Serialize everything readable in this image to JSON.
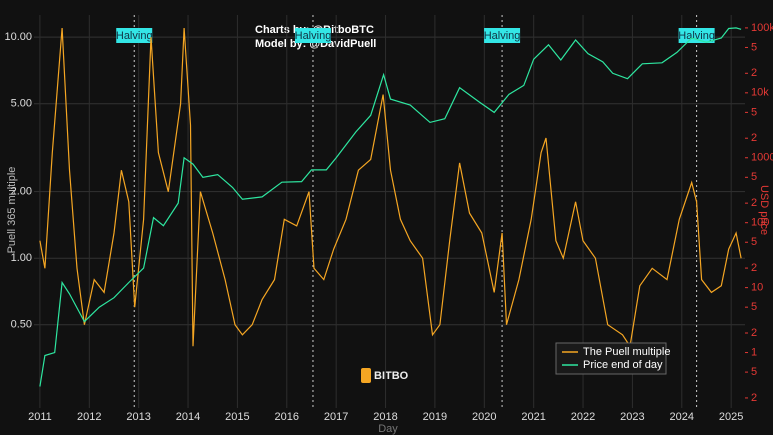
{
  "chart_data": {
    "type": "line",
    "y_label": "Puell 365 multiple",
    "y2_label": "USD price",
    "x_label": "Day",
    "credits": [
      "Charts by: @BitboBTC",
      "Model by: @DavidPuell"
    ],
    "watermark": "BITBO",
    "ylog": true,
    "y2log": true,
    "grid": true,
    "legend": "lower right",
    "xlim": [
      2010.88,
      2025.28
    ],
    "xticks": [
      2011,
      2012,
      2013,
      2014,
      2015,
      2016,
      2017,
      2018,
      2019,
      2020,
      2021,
      2022,
      2023,
      2024,
      2025
    ],
    "ylim": [
      0.21,
      12.6
    ],
    "yticks": [
      {
        "value": 0.5,
        "label": "0.50"
      },
      {
        "value": 1,
        "label": "1.00"
      },
      {
        "value": 2,
        "label": "2.00"
      },
      {
        "value": 5,
        "label": "5.00"
      },
      {
        "value": 10,
        "label": "10.00"
      }
    ],
    "y2lim": [
      0.14,
      158000
    ],
    "y2ticks": [
      {
        "value": 0.2,
        "label": "2"
      },
      {
        "value": 0.5,
        "label": "5"
      },
      1,
      {
        "value": 2,
        "label": "2"
      },
      {
        "value": 5,
        "label": "5"
      },
      10,
      {
        "value": 20,
        "label": "2"
      },
      {
        "value": 50,
        "label": "5"
      },
      100,
      {
        "value": 200,
        "label": "2"
      },
      {
        "value": 500,
        "label": "5"
      },
      1000,
      {
        "value": 2000,
        "label": "2"
      },
      {
        "value": 5000,
        "label": "5"
      },
      {
        "value": 10000,
        "label": "10k"
      },
      {
        "value": 20000,
        "label": "2"
      },
      {
        "value": 50000,
        "label": "5"
      },
      {
        "value": 100000,
        "label": "100k"
      }
    ],
    "annotations": [
      {
        "x": 2012.91,
        "label": "Halving"
      },
      {
        "x": 2016.53,
        "label": "Halving"
      },
      {
        "x": 2020.36,
        "label": "Halving"
      },
      {
        "x": 2024.3,
        "label": "Halving"
      }
    ],
    "series": [
      {
        "name": "The Puell multiple",
        "color": "#f5a623",
        "axis": "y",
        "x": [
          2011.0,
          2011.1,
          2011.25,
          2011.45,
          2011.6,
          2011.75,
          2011.9,
          2012.1,
          2012.3,
          2012.5,
          2012.65,
          2012.8,
          2012.92,
          2013.1,
          2013.25,
          2013.4,
          2013.6,
          2013.85,
          2013.92,
          2014.05,
          2014.1,
          2014.25,
          2014.5,
          2014.75,
          2014.95,
          2015.1,
          2015.3,
          2015.5,
          2015.75,
          2015.95,
          2016.2,
          2016.45,
          2016.55,
          2016.75,
          2016.95,
          2017.2,
          2017.45,
          2017.7,
          2017.95,
          2018.1,
          2018.3,
          2018.5,
          2018.75,
          2018.95,
          2019.1,
          2019.3,
          2019.5,
          2019.7,
          2019.95,
          2020.2,
          2020.36,
          2020.45,
          2020.7,
          2020.95,
          2021.15,
          2021.25,
          2021.45,
          2021.6,
          2021.85,
          2022.0,
          2022.25,
          2022.5,
          2022.8,
          2022.95,
          2023.15,
          2023.4,
          2023.7,
          2023.95,
          2024.2,
          2024.3,
          2024.4,
          2024.6,
          2024.8,
          2024.95,
          2025.1,
          2025.2
        ],
        "values": [
          1.2,
          0.9,
          3,
          11,
          2.5,
          0.9,
          0.5,
          0.8,
          0.7,
          1.3,
          2.5,
          1.8,
          0.6,
          1.5,
          10,
          3,
          2,
          5,
          11,
          4,
          0.4,
          2,
          1.3,
          0.8,
          0.5,
          0.45,
          0.5,
          0.65,
          0.8,
          1.5,
          1.4,
          2.0,
          0.9,
          0.8,
          1.1,
          1.5,
          2.5,
          2.8,
          5.5,
          2.5,
          1.5,
          1.2,
          1.0,
          0.45,
          0.5,
          1.2,
          2.7,
          1.6,
          1.3,
          0.7,
          1.3,
          0.5,
          0.8,
          1.5,
          3.0,
          3.5,
          1.2,
          1.0,
          1.8,
          1.2,
          1.0,
          0.5,
          0.45,
          0.4,
          0.75,
          0.9,
          0.8,
          1.5,
          2.2,
          1.8,
          0.8,
          0.7,
          0.75,
          1.1,
          1.3,
          1.0
        ]
      },
      {
        "name": "Price end of day",
        "color": "#2ee6a0",
        "axis": "y2",
        "x": [
          2011.0,
          2011.1,
          2011.3,
          2011.45,
          2011.6,
          2011.9,
          2012.2,
          2012.5,
          2012.8,
          2013.1,
          2013.3,
          2013.5,
          2013.8,
          2013.92,
          2014.1,
          2014.3,
          2014.6,
          2014.9,
          2015.1,
          2015.5,
          2015.9,
          2016.3,
          2016.5,
          2016.8,
          2017.0,
          2017.4,
          2017.7,
          2017.96,
          2018.1,
          2018.5,
          2018.9,
          2019.2,
          2019.5,
          2019.9,
          2020.2,
          2020.5,
          2020.8,
          2021.0,
          2021.3,
          2021.55,
          2021.85,
          2022.1,
          2022.4,
          2022.6,
          2022.9,
          2023.2,
          2023.6,
          2023.9,
          2024.2,
          2024.5,
          2024.8,
          2024.95,
          2025.1,
          2025.2
        ],
        "values": [
          0.3,
          0.9,
          1,
          12,
          8,
          3,
          5,
          7,
          12,
          20,
          120,
          90,
          200,
          1000,
          800,
          500,
          550,
          350,
          230,
          250,
          420,
          430,
          650,
          650,
          1000,
          2500,
          4500,
          19000,
          8000,
          6500,
          3500,
          4000,
          12000,
          7200,
          5000,
          9500,
          13000,
          33000,
          55000,
          32000,
          65000,
          40000,
          30000,
          20000,
          16500,
          28000,
          29000,
          42000,
          70000,
          60000,
          70000,
          98000,
          100000,
          95000
        ]
      }
    ]
  }
}
